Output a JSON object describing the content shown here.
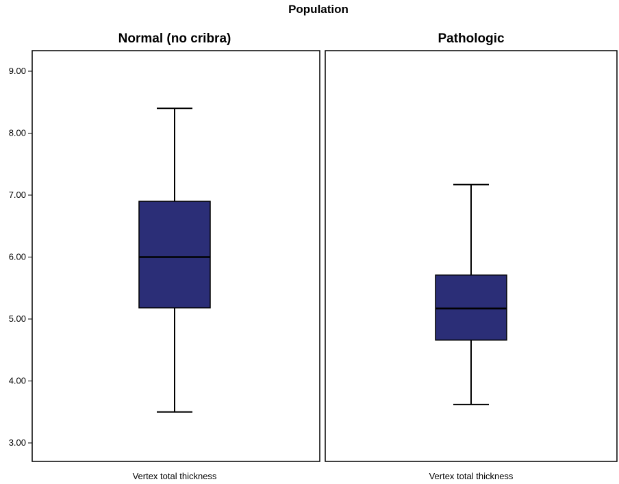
{
  "chart_data": {
    "type": "boxplot",
    "title": "Population",
    "ylim": [
      2.9,
      9.4
    ],
    "yticks": [
      "3.00",
      "4.00",
      "5.00",
      "6.00",
      "7.00",
      "8.00",
      "9.00"
    ],
    "box_color": "#2b2e77",
    "panels": [
      {
        "title": "Normal (no cribra)",
        "xlabel": "Vertex total thickness",
        "min": 3.5,
        "q1": 5.18,
        "median": 6.0,
        "q3": 6.9,
        "max": 8.4
      },
      {
        "title": "Pathologic",
        "xlabel": "Vertex total thickness",
        "min": 3.62,
        "q1": 4.66,
        "median": 5.17,
        "q3": 5.71,
        "max": 7.17
      }
    ]
  }
}
